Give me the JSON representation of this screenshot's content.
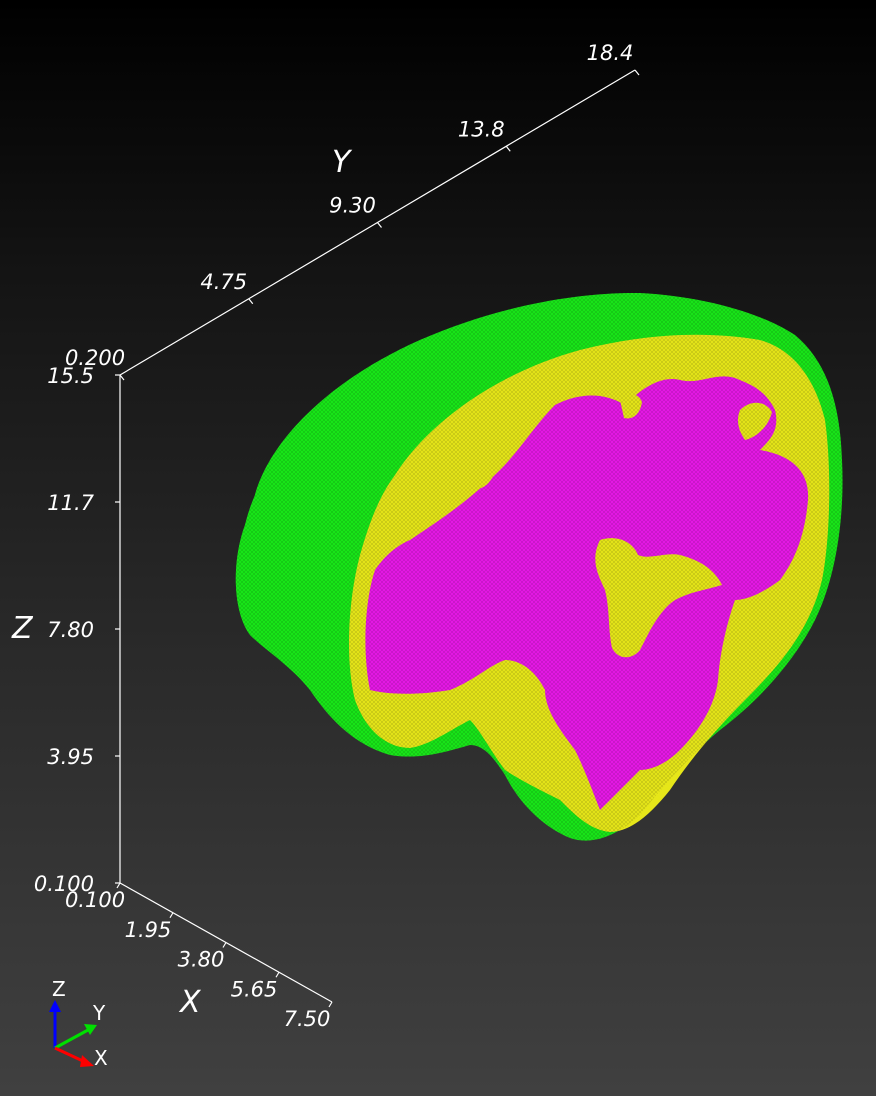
{
  "axes": {
    "z": {
      "title": "Z",
      "ticks": [
        "15.5",
        "11.7",
        "7.80",
        "3.95",
        "0.100"
      ]
    },
    "y": {
      "title": "Y",
      "ticks": [
        "0.200",
        "4.75",
        "9.30",
        "13.8",
        "18.4"
      ]
    },
    "x": {
      "title": "X",
      "ticks": [
        "0.100",
        "1.95",
        "3.80",
        "5.65",
        "7.50"
      ]
    }
  },
  "orientation": {
    "z": "Z",
    "y": "Y",
    "x": "X"
  },
  "colors": {
    "outer_layer": "#19e619",
    "middle_layer": "#e6e619",
    "inner_core": "#e619e6",
    "axis_z": "#0000ff",
    "axis_y": "#00e000",
    "axis_x": "#ff0000"
  },
  "layers": [
    "outer_layer",
    "middle_layer",
    "inner_core"
  ]
}
